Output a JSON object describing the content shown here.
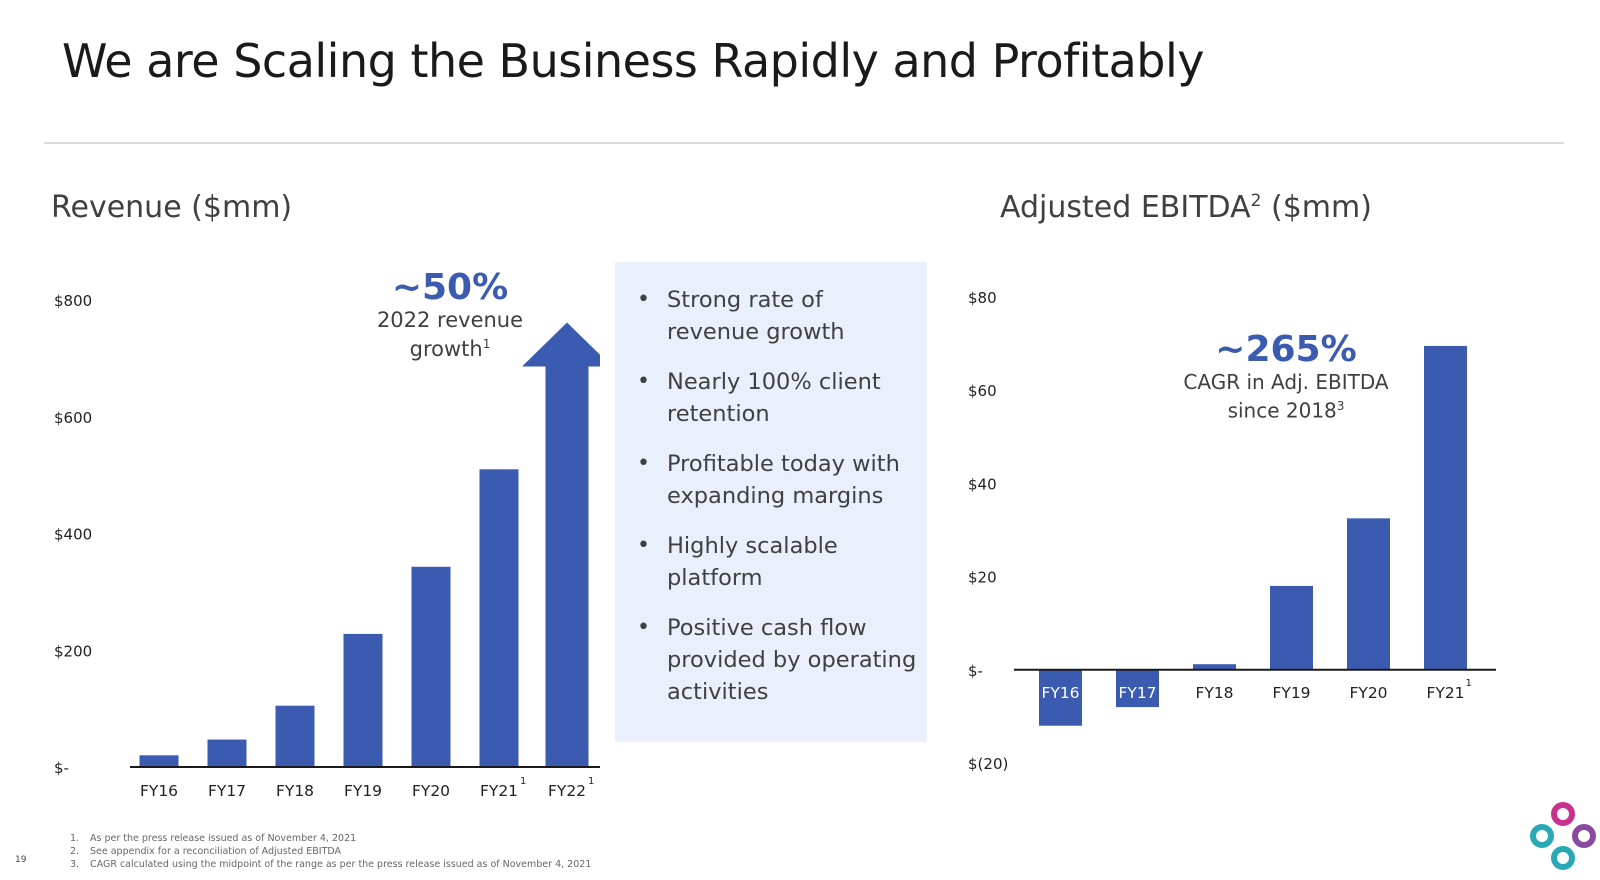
{
  "slide": {
    "title": "We are Scaling the Business Rapidly and Profitably",
    "page_number": "19"
  },
  "revenue": {
    "title": "Revenue ($mm)",
    "callout": {
      "value": "~50%",
      "line1": "2022 revenue",
      "line2": "growth",
      "sup": "1"
    }
  },
  "ebitda": {
    "title": "Adjusted EBITDA",
    "title_sup": "2",
    "title_suffix": " ($mm)",
    "callout": {
      "value": "~265%",
      "line1": "CAGR in Adj. EBITDA",
      "line2": "since 2018",
      "sup": "3"
    }
  },
  "bullets": [
    "Strong rate of revenue growth",
    "Nearly 100% client retention",
    "Profitable today with expanding margins",
    "Highly scalable platform",
    "Positive cash flow provided by operating activities"
  ],
  "footnotes": [
    {
      "num": "1.",
      "text": "As per the press release issued as of November 4, 2021"
    },
    {
      "num": "2.",
      "text": "See appendix for a reconciliation of Adjusted EBITDA"
    },
    {
      "num": "3.",
      "text": "CAGR calculated using the midpoint of the range as per the press release issued as of November 4, 2021"
    }
  ],
  "colors": {
    "bar": "#3b5bb0",
    "accent_text": "#3b5bb0",
    "box_background": "#eaf0fb",
    "axis": "#1a1a1a",
    "logo_magenta": "#c8328c",
    "logo_purple": "#8a4aa0",
    "logo_teal": "#2aa9b4"
  },
  "chart_data": [
    {
      "type": "bar",
      "title": "Revenue ($mm)",
      "categories": [
        "FY16",
        "FY17",
        "FY18",
        "FY19",
        "FY20",
        "FY21",
        "FY22"
      ],
      "category_sup": [
        "",
        "",
        "",
        "",
        "",
        "1",
        "1"
      ],
      "values": [
        20,
        47,
        105,
        228,
        343,
        510,
        770
      ],
      "last_bar_style": "arrow",
      "ylim": [
        0,
        800
      ],
      "y_ticks": [
        0,
        200,
        400,
        600,
        800
      ],
      "y_tick_labels": [
        "$-",
        "$200",
        "$400",
        "$600",
        "$800"
      ],
      "grid": false
    },
    {
      "type": "bar",
      "title": "Adjusted EBITDA2 ($mm)",
      "categories": [
        "FY16",
        "FY17",
        "FY18",
        "FY19",
        "FY20",
        "FY21"
      ],
      "category_sup": [
        "",
        "",
        "",
        "",
        "",
        "1"
      ],
      "values": [
        -12,
        -8,
        1.2,
        18,
        32.5,
        69.5
      ],
      "ylim": [
        -20,
        80
      ],
      "y_ticks": [
        -20,
        0,
        20,
        40,
        60,
        80
      ],
      "y_tick_labels": [
        "$(20)",
        "$-",
        "$20",
        "$40",
        "$60",
        "$80"
      ],
      "grid": false
    }
  ]
}
